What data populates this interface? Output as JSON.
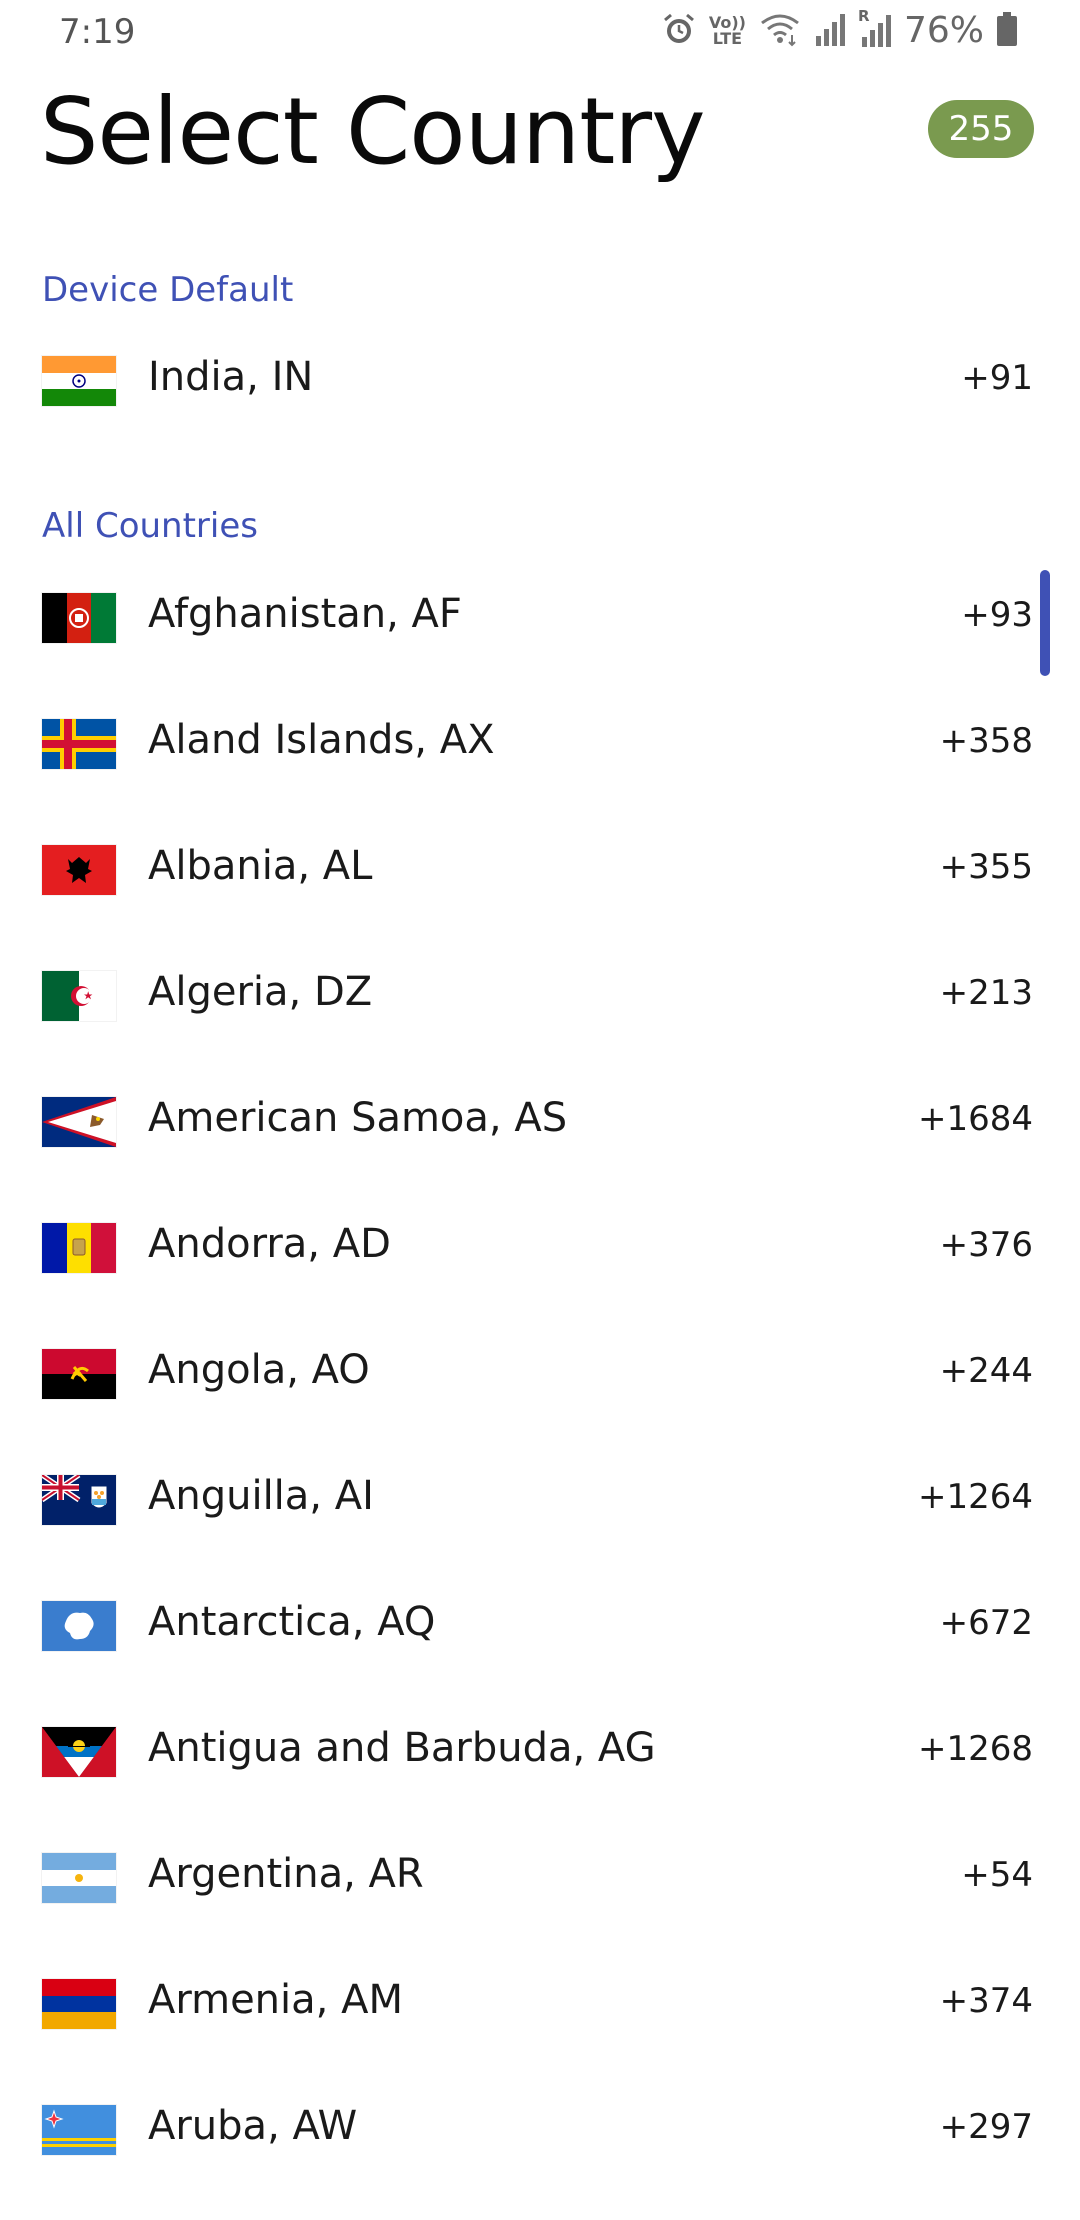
{
  "status_bar": {
    "time": "7:19",
    "battery_percent": "76%",
    "icons": [
      "alarm-icon",
      "volte-icon",
      "wifi-icon",
      "signal-icon",
      "signal-roaming-icon",
      "battery-icon"
    ],
    "volte_top": "Vo))",
    "volte_bottom": "LTE",
    "roaming_label": "R"
  },
  "header": {
    "title": "Select Country",
    "count": "255",
    "badge_color": "#7a9a4f"
  },
  "accent_color": "#3f51b5",
  "device_default": {
    "section_label": "Device Default",
    "country": {
      "name": "India, IN",
      "code": "+91",
      "flag": "flag-india-icon"
    }
  },
  "all_countries": {
    "section_label": "All Countries",
    "items": [
      {
        "name": "Afghanistan, AF",
        "code": "+93",
        "flag": "flag-afghanistan-icon"
      },
      {
        "name": "Aland Islands, AX",
        "code": "+358",
        "flag": "flag-aland-islands-icon"
      },
      {
        "name": "Albania, AL",
        "code": "+355",
        "flag": "flag-albania-icon"
      },
      {
        "name": "Algeria, DZ",
        "code": "+213",
        "flag": "flag-algeria-icon"
      },
      {
        "name": "American Samoa, AS",
        "code": "+1684",
        "flag": "flag-american-samoa-icon"
      },
      {
        "name": "Andorra, AD",
        "code": "+376",
        "flag": "flag-andorra-icon"
      },
      {
        "name": "Angola, AO",
        "code": "+244",
        "flag": "flag-angola-icon"
      },
      {
        "name": "Anguilla, AI",
        "code": "+1264",
        "flag": "flag-anguilla-icon"
      },
      {
        "name": "Antarctica, AQ",
        "code": "+672",
        "flag": "flag-antarctica-icon"
      },
      {
        "name": "Antigua and Barbuda, AG",
        "code": "+1268",
        "flag": "flag-antigua-barbuda-icon"
      },
      {
        "name": "Argentina, AR",
        "code": "+54",
        "flag": "flag-argentina-icon"
      },
      {
        "name": "Armenia, AM",
        "code": "+374",
        "flag": "flag-armenia-icon"
      },
      {
        "name": "Aruba, AW",
        "code": "+297",
        "flag": "flag-aruba-icon"
      }
    ]
  }
}
